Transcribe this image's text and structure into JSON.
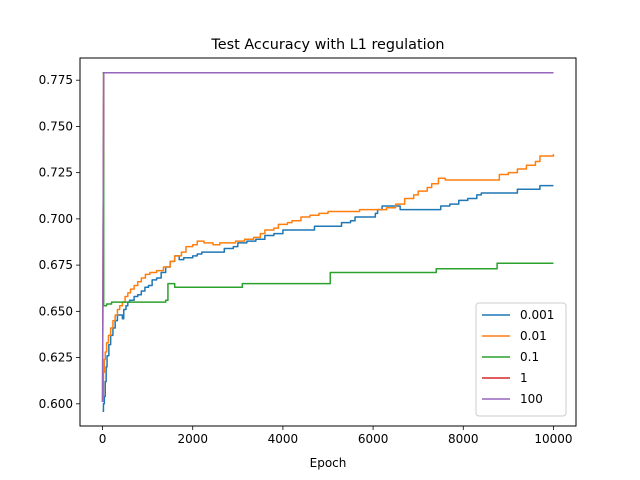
{
  "chart_data": {
    "type": "line",
    "title": "Test Accuracy with L1 regulation",
    "xlabel": "Epoch",
    "ylabel": "",
    "xlim": [
      -500,
      10500
    ],
    "ylim": [
      0.588,
      0.787
    ],
    "xticks": [
      0,
      2000,
      4000,
      6000,
      8000,
      10000
    ],
    "xtick_labels": [
      "0",
      "2000",
      "4000",
      "6000",
      "8000",
      "10000"
    ],
    "yticks": [
      0.6,
      0.625,
      0.65,
      0.675,
      0.7,
      0.725,
      0.75,
      0.775
    ],
    "ytick_labels": [
      "0.600",
      "0.625",
      "0.650",
      "0.675",
      "0.700",
      "0.725",
      "0.750",
      "0.775"
    ],
    "grid": false,
    "legend_position": "lower-right",
    "series": [
      {
        "name": "0.001",
        "color": "#1f77b4",
        "step": true,
        "points": [
          [
            0,
            0.596
          ],
          [
            20,
            0.6
          ],
          [
            40,
            0.604
          ],
          [
            60,
            0.612
          ],
          [
            80,
            0.62
          ],
          [
            100,
            0.626
          ],
          [
            140,
            0.632
          ],
          [
            180,
            0.637
          ],
          [
            230,
            0.641
          ],
          [
            280,
            0.645
          ],
          [
            330,
            0.648
          ],
          [
            400,
            0.648
          ],
          [
            440,
            0.646
          ],
          [
            470,
            0.651
          ],
          [
            520,
            0.653
          ],
          [
            560,
            0.655
          ],
          [
            600,
            0.656
          ],
          [
            700,
            0.658
          ],
          [
            780,
            0.659
          ],
          [
            860,
            0.661
          ],
          [
            940,
            0.663
          ],
          [
            1020,
            0.664
          ],
          [
            1100,
            0.667
          ],
          [
            1200,
            0.668
          ],
          [
            1300,
            0.671
          ],
          [
            1400,
            0.674
          ],
          [
            1500,
            0.677
          ],
          [
            1600,
            0.68
          ],
          [
            1700,
            0.678
          ],
          [
            1800,
            0.679
          ],
          [
            2000,
            0.68
          ],
          [
            2100,
            0.681
          ],
          [
            2200,
            0.682
          ],
          [
            2600,
            0.682
          ],
          [
            2700,
            0.684
          ],
          [
            2900,
            0.685
          ],
          [
            3000,
            0.687
          ],
          [
            3200,
            0.688
          ],
          [
            3400,
            0.689
          ],
          [
            3600,
            0.691
          ],
          [
            3800,
            0.692
          ],
          [
            4000,
            0.694
          ],
          [
            4500,
            0.694
          ],
          [
            4700,
            0.696
          ],
          [
            5200,
            0.696
          ],
          [
            5300,
            0.698
          ],
          [
            5500,
            0.699
          ],
          [
            5600,
            0.701
          ],
          [
            6000,
            0.701
          ],
          [
            6050,
            0.703
          ],
          [
            6100,
            0.705
          ],
          [
            6200,
            0.707
          ],
          [
            6500,
            0.707
          ],
          [
            6600,
            0.705
          ],
          [
            7400,
            0.705
          ],
          [
            7500,
            0.707
          ],
          [
            7700,
            0.708
          ],
          [
            7900,
            0.71
          ],
          [
            8100,
            0.711
          ],
          [
            8300,
            0.713
          ],
          [
            8400,
            0.714
          ],
          [
            9100,
            0.714
          ],
          [
            9200,
            0.716
          ],
          [
            9600,
            0.716
          ],
          [
            9700,
            0.718
          ],
          [
            10000,
            0.718
          ]
        ]
      },
      {
        "name": "0.01",
        "color": "#ff7f0e",
        "step": true,
        "points": [
          [
            0,
            0.604
          ],
          [
            20,
            0.617
          ],
          [
            40,
            0.624
          ],
          [
            60,
            0.628
          ],
          [
            90,
            0.633
          ],
          [
            130,
            0.637
          ],
          [
            180,
            0.641
          ],
          [
            230,
            0.645
          ],
          [
            280,
            0.648
          ],
          [
            330,
            0.651
          ],
          [
            380,
            0.653
          ],
          [
            440,
            0.655
          ],
          [
            500,
            0.658
          ],
          [
            560,
            0.66
          ],
          [
            620,
            0.662
          ],
          [
            700,
            0.664
          ],
          [
            780,
            0.666
          ],
          [
            860,
            0.668
          ],
          [
            950,
            0.67
          ],
          [
            1050,
            0.671
          ],
          [
            1200,
            0.672
          ],
          [
            1350,
            0.674
          ],
          [
            1500,
            0.677
          ],
          [
            1600,
            0.68
          ],
          [
            1750,
            0.682
          ],
          [
            1850,
            0.685
          ],
          [
            2000,
            0.686
          ],
          [
            2100,
            0.688
          ],
          [
            2250,
            0.687
          ],
          [
            2450,
            0.686
          ],
          [
            2600,
            0.687
          ],
          [
            2800,
            0.687
          ],
          [
            2950,
            0.688
          ],
          [
            3150,
            0.689
          ],
          [
            3350,
            0.69
          ],
          [
            3500,
            0.692
          ],
          [
            3600,
            0.694
          ],
          [
            3800,
            0.695
          ],
          [
            3900,
            0.697
          ],
          [
            4100,
            0.698
          ],
          [
            4200,
            0.699
          ],
          [
            4400,
            0.701
          ],
          [
            4600,
            0.702
          ],
          [
            4800,
            0.703
          ],
          [
            5000,
            0.704
          ],
          [
            5600,
            0.704
          ],
          [
            5700,
            0.705
          ],
          [
            6200,
            0.705
          ],
          [
            6300,
            0.706
          ],
          [
            6500,
            0.708
          ],
          [
            6700,
            0.711
          ],
          [
            6900,
            0.713
          ],
          [
            7000,
            0.715
          ],
          [
            7200,
            0.717
          ],
          [
            7300,
            0.719
          ],
          [
            7450,
            0.722
          ],
          [
            7600,
            0.721
          ],
          [
            8000,
            0.721
          ],
          [
            8700,
            0.721
          ],
          [
            8800,
            0.724
          ],
          [
            9000,
            0.725
          ],
          [
            9200,
            0.727
          ],
          [
            9400,
            0.729
          ],
          [
            9600,
            0.731
          ],
          [
            9700,
            0.734
          ],
          [
            9900,
            0.734
          ],
          [
            10000,
            0.735
          ]
        ]
      },
      {
        "name": "0.1",
        "color": "#2ca02c",
        "step": true,
        "points": [
          [
            0,
            0.779
          ],
          [
            25,
            0.653
          ],
          [
            90,
            0.654
          ],
          [
            200,
            0.655
          ],
          [
            1100,
            0.655
          ],
          [
            1400,
            0.656
          ],
          [
            1450,
            0.665
          ],
          [
            1600,
            0.663
          ],
          [
            3050,
            0.663
          ],
          [
            3100,
            0.665
          ],
          [
            5000,
            0.665
          ],
          [
            5050,
            0.671
          ],
          [
            7350,
            0.671
          ],
          [
            7400,
            0.673
          ],
          [
            8700,
            0.673
          ],
          [
            8750,
            0.676
          ],
          [
            10000,
            0.676
          ]
        ]
      },
      {
        "name": "1",
        "color": "#d62728",
        "step": false,
        "points": [
          [
            0,
            0.601
          ],
          [
            25,
            0.779
          ],
          [
            10000,
            0.779
          ]
        ]
      },
      {
        "name": "100",
        "color": "#9467bd",
        "step": false,
        "points": [
          [
            0,
            0.601
          ],
          [
            25,
            0.779
          ],
          [
            10000,
            0.779
          ]
        ]
      }
    ]
  }
}
